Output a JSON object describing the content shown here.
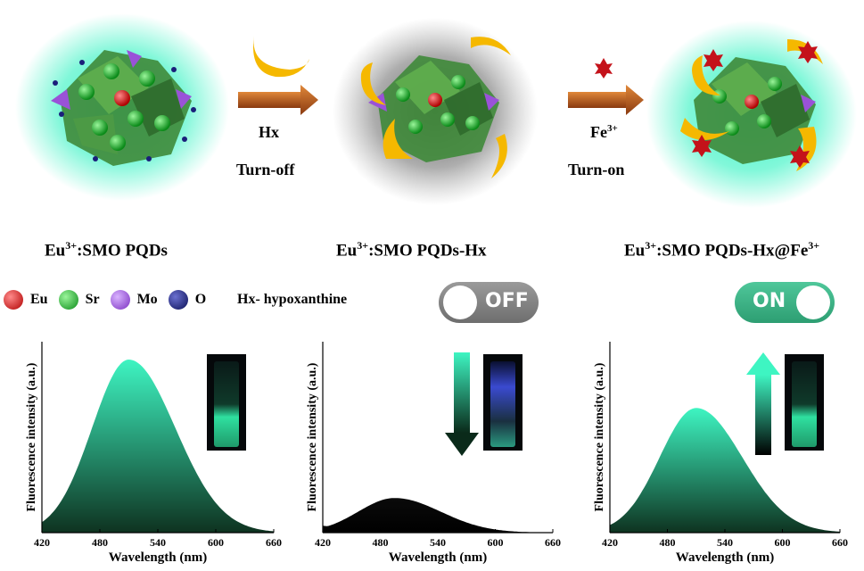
{
  "colors": {
    "glow": "#2ef2c0",
    "arrow": "#b5521a",
    "eu": "#e01f1f",
    "sr": "#19b52a",
    "mo": "#9a52d8",
    "o": "#1a1f7a",
    "moon": "#f5b800",
    "fe": "#c4121a",
    "curve_top": "#3ef5c2",
    "curve_bottom": "#0e3320"
  },
  "steps": {
    "step1": {
      "reagent": "Hx",
      "action": "Turn-off"
    },
    "step2": {
      "reagent": "Fe",
      "reagent_sup": "3+",
      "action": "Turn-on"
    }
  },
  "labels": {
    "state1": {
      "pre": "Eu",
      "sup": "3+",
      "post": ":SMO PQDs"
    },
    "state2": {
      "pre": "Eu",
      "sup": "3+",
      "post": ":SMO PQDs-Hx"
    },
    "state3": {
      "pre": "Eu",
      "sup": "3+",
      "post": ":SMO PQDs-Hx@Fe",
      "sup2": "3+"
    }
  },
  "legend": [
    {
      "label": "Eu",
      "icon": "red-sphere"
    },
    {
      "label": "Sr",
      "icon": "green-sphere"
    },
    {
      "label": "Mo",
      "icon": "purple-sphere"
    },
    {
      "label": "O",
      "icon": "navy-sphere"
    }
  ],
  "legend_note": "Hx- hypoxanthine",
  "toggles": {
    "off": "OFF",
    "on": "ON"
  },
  "chart_data": [
    {
      "type": "area",
      "xlabel": "Wavelength (nm)",
      "ylabel": "Fluorescence intensity (a.u.)",
      "xlim": [
        420,
        660
      ],
      "xticks": [
        420,
        480,
        540,
        600,
        660
      ],
      "peak_x": 510,
      "relative_peak": 1.0,
      "vial": "bright-green"
    },
    {
      "type": "area",
      "xlabel": "Wavelength (nm)",
      "ylabel": "Fluorescence intensity (a.u.)",
      "xlim": [
        420,
        660
      ],
      "xticks": [
        420,
        480,
        540,
        600,
        660
      ],
      "peak_x": 495,
      "relative_peak": 0.2,
      "vial": "dim-blue",
      "trend": "down"
    },
    {
      "type": "area",
      "xlabel": "Wavelength (nm)",
      "ylabel": "Fluorescence intensity (a.u.)",
      "xlim": [
        420,
        660
      ],
      "xticks": [
        420,
        480,
        540,
        600,
        660
      ],
      "peak_x": 510,
      "relative_peak": 0.72,
      "vial": "bright-green",
      "trend": "up"
    }
  ]
}
